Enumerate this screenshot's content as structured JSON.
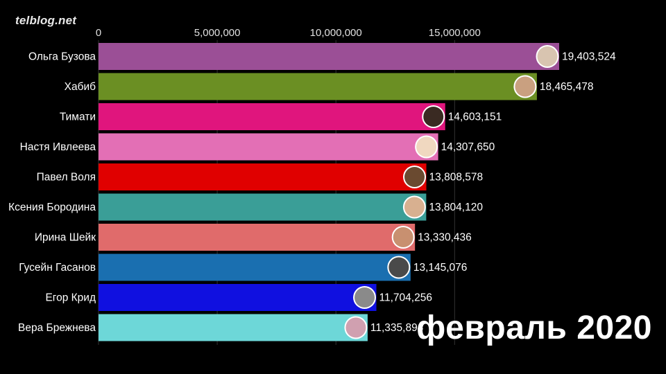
{
  "watermark": "telblog.net",
  "period_label": "февраль 2020",
  "chart_data": {
    "type": "bar",
    "orientation": "horizontal",
    "xlim": [
      0,
      19403524
    ],
    "x_ticks": [
      0,
      5000000,
      10000000,
      15000000
    ],
    "x_tick_labels": [
      "0",
      "5,000,000",
      "10,000,000",
      "15,000,000"
    ],
    "grid": true,
    "categories": [
      "Ольга Бузова",
      "Хабиб",
      "Тимати",
      "Настя Ивлеева",
      "Павел Воля",
      "Ксения Бородина",
      "Ирина Шейк",
      "Гусейн Гасанов",
      "Егор Крид",
      "Вера Брежнева"
    ],
    "values": [
      19403524,
      18465478,
      14603151,
      14307650,
      13808578,
      13804120,
      13330436,
      13145076,
      11704256,
      11335894
    ],
    "value_labels": [
      "19,403,524",
      "18,465,478",
      "14,603,151",
      "14,307,650",
      "13,808,578",
      "13,804,120",
      "13,330,436",
      "13,145,076",
      "11,704,256",
      "11,335,894"
    ],
    "colors": [
      "#9b4f96",
      "#6b8f23",
      "#e0157d",
      "#e36fb5",
      "#e00000",
      "#3a9e97",
      "#e06b6b",
      "#1a6fb0",
      "#1010e0",
      "#6dd7d8"
    ],
    "avatar_colors": [
      "#d8c4b0",
      "#c9a080",
      "#3a2a22",
      "#f0d8c0",
      "#6a4a30",
      "#d8b090",
      "#c89070",
      "#4a4a4a",
      "#8a8a8a",
      "#d0a0b0"
    ]
  }
}
